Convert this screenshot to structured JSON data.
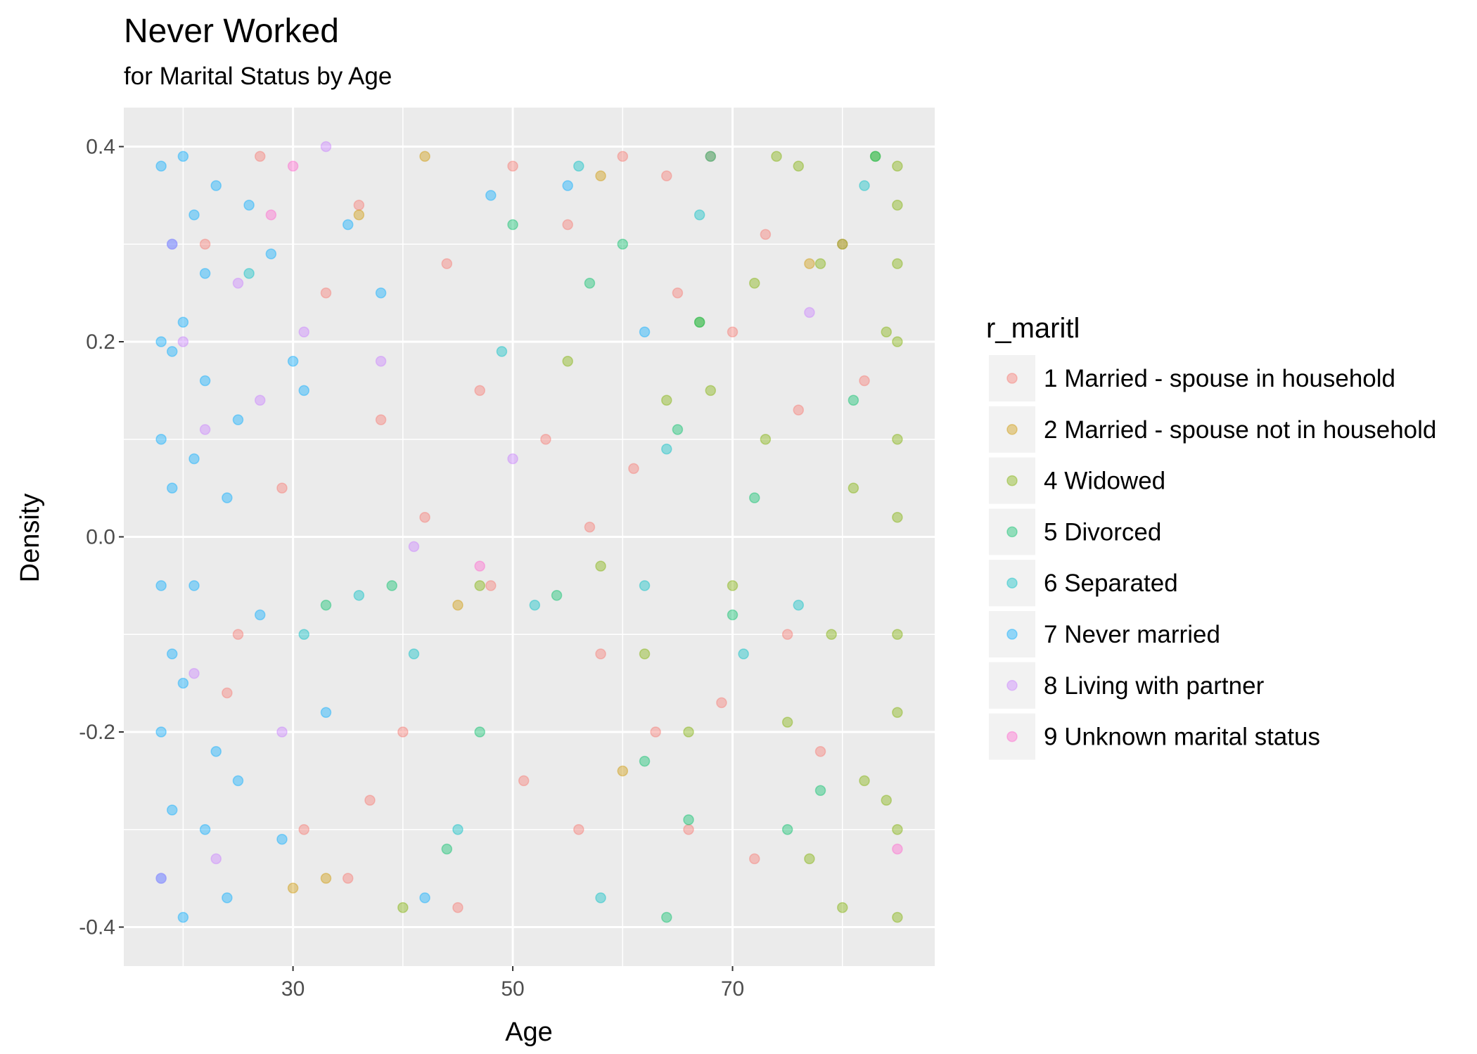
{
  "chart_data": {
    "type": "scatter",
    "title": "Never Worked",
    "subtitle": "for Marital Status by Age",
    "x_label": "Age",
    "y_label": "Density",
    "legend_title": "r_maritl",
    "legend_position": "right",
    "xlim": [
      14.6,
      88.4
    ],
    "ylim": [
      -0.44,
      0.44
    ],
    "xticks": [
      30,
      50,
      70
    ],
    "yticks": [
      0.4,
      0.2,
      {
        "value": 0,
        "label": "0.0"
      },
      -0.2,
      -0.4
    ],
    "x_minor_grid": [
      20,
      40,
      60,
      80
    ],
    "y_minor_grid": [
      0.3,
      0.1,
      -0.1,
      -0.3
    ],
    "grid": true,
    "opacity": 0.4,
    "series": [
      {
        "name": "1 Married - spouse in household",
        "color": "#F8766D",
        "x": [
          22,
          25,
          27,
          29,
          31,
          33,
          35,
          36,
          38,
          40,
          42,
          44,
          45,
          47,
          48,
          50,
          51,
          53,
          55,
          56,
          58,
          60,
          61,
          63,
          64,
          65,
          66,
          68,
          69,
          70,
          72,
          73,
          75,
          76,
          78,
          80,
          82,
          24,
          37,
          57
        ],
        "values": [
          0.3,
          -0.1,
          0.39,
          0.05,
          -0.3,
          0.25,
          -0.35,
          0.34,
          0.12,
          -0.2,
          0.02,
          0.28,
          -0.38,
          0.15,
          -0.05,
          0.38,
          -0.25,
          0.1,
          0.32,
          -0.3,
          -0.12,
          0.39,
          0.07,
          -0.2,
          0.37,
          0.25,
          -0.3,
          0.39,
          -0.17,
          0.21,
          -0.33,
          0.31,
          -0.1,
          0.13,
          -0.22,
          0.3,
          0.16,
          -0.16,
          -0.27,
          0.01
        ]
      },
      {
        "name": "2 Married - spouse not in household",
        "color": "#CD9600",
        "x": [
          30,
          33,
          42,
          45,
          58,
          60,
          36,
          77
        ],
        "values": [
          -0.36,
          -0.35,
          0.39,
          -0.07,
          0.37,
          -0.24,
          0.33,
          0.28
        ]
      },
      {
        "name": "4 Widowed",
        "color": "#7CAE00",
        "x": [
          47,
          55,
          58,
          62,
          64,
          66,
          67,
          68,
          70,
          72,
          73,
          74,
          75,
          76,
          77,
          78,
          79,
          80,
          80,
          81,
          82,
          83,
          84,
          84,
          85,
          85,
          85,
          85,
          85,
          85,
          85,
          85,
          85,
          85,
          40
        ],
        "values": [
          -0.05,
          0.18,
          -0.03,
          -0.12,
          0.14,
          -0.2,
          0.22,
          0.15,
          -0.05,
          0.26,
          0.1,
          0.39,
          -0.19,
          0.38,
          -0.33,
          0.28,
          -0.1,
          0.3,
          -0.38,
          0.05,
          -0.25,
          0.39,
          0.21,
          -0.27,
          0.38,
          0.34,
          0.28,
          0.2,
          0.1,
          0.02,
          -0.1,
          -0.18,
          -0.3,
          -0.39,
          -0.38
        ]
      },
      {
        "name": "5 Divorced",
        "color": "#00BE67",
        "x": [
          33,
          39,
          44,
          47,
          50,
          54,
          57,
          60,
          62,
          64,
          65,
          66,
          67,
          68,
          70,
          72,
          75,
          78,
          81,
          83
        ],
        "values": [
          -0.07,
          -0.05,
          -0.32,
          -0.2,
          0.32,
          -0.06,
          0.26,
          0.3,
          -0.23,
          -0.39,
          0.11,
          -0.29,
          0.22,
          0.39,
          -0.08,
          0.04,
          -0.3,
          -0.26,
          0.14,
          0.39
        ]
      },
      {
        "name": "6 Separated",
        "color": "#00BFC4",
        "x": [
          26,
          31,
          36,
          41,
          45,
          49,
          52,
          56,
          58,
          62,
          64,
          67,
          71,
          76,
          82
        ],
        "values": [
          0.27,
          -0.1,
          -0.06,
          -0.12,
          -0.3,
          0.19,
          -0.07,
          0.38,
          -0.37,
          -0.05,
          0.09,
          0.33,
          -0.12,
          -0.07,
          0.36
        ]
      },
      {
        "name": "7 Never married",
        "color": "#00A9FF",
        "x": [
          18,
          18,
          18,
          18,
          18,
          18,
          19,
          19,
          19,
          19,
          19,
          20,
          20,
          20,
          20,
          21,
          21,
          21,
          22,
          22,
          22,
          23,
          23,
          24,
          24,
          25,
          25,
          26,
          27,
          28,
          29,
          30,
          31,
          33,
          35,
          38,
          42,
          48,
          55,
          62
        ],
        "values": [
          0.38,
          0.2,
          -0.05,
          -0.2,
          -0.35,
          0.1,
          0.3,
          -0.12,
          0.05,
          -0.28,
          0.19,
          0.39,
          -0.39,
          0.22,
          -0.15,
          0.33,
          -0.05,
          0.08,
          -0.3,
          0.16,
          0.27,
          -0.22,
          0.36,
          0.04,
          -0.37,
          0.12,
          -0.25,
          0.34,
          -0.08,
          0.29,
          -0.31,
          0.18,
          0.15,
          -0.18,
          0.32,
          0.25,
          -0.37,
          0.35,
          0.36,
          0.21
        ]
      },
      {
        "name": "8 Living with partner",
        "color": "#C77CFF",
        "x": [
          18,
          19,
          20,
          21,
          22,
          23,
          25,
          27,
          29,
          31,
          33,
          38,
          41,
          50,
          77
        ],
        "values": [
          -0.35,
          0.3,
          0.2,
          -0.14,
          0.11,
          -0.33,
          0.26,
          0.14,
          -0.2,
          0.21,
          0.4,
          0.18,
          -0.01,
          0.08,
          0.23
        ]
      },
      {
        "name": "9 Unknown marital status",
        "color": "#FF61CC",
        "x": [
          28,
          30,
          47,
          85
        ],
        "values": [
          0.33,
          0.38,
          -0.03,
          -0.32
        ]
      }
    ]
  }
}
